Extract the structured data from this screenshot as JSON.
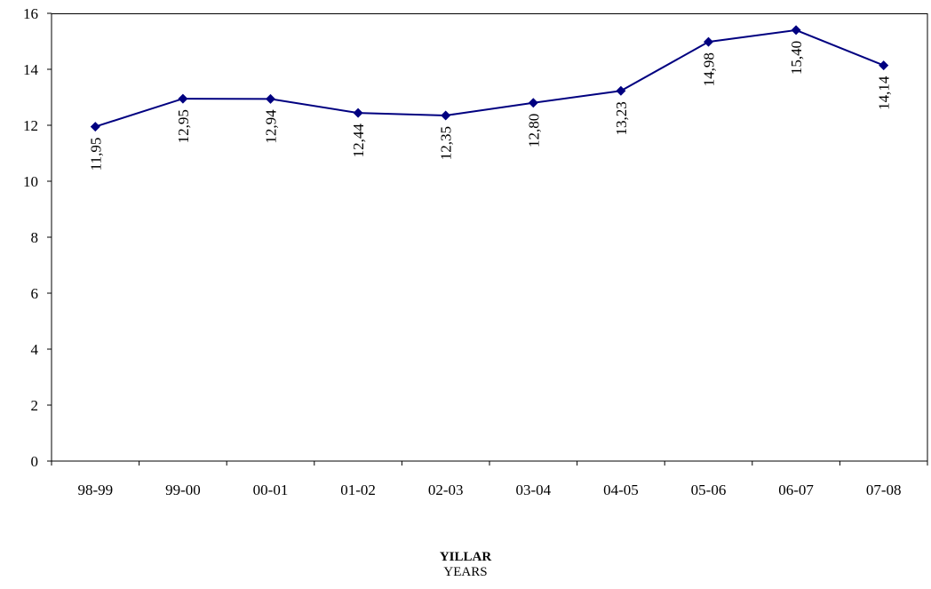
{
  "chart_data": {
    "type": "line",
    "categories": [
      "98-99",
      "99-00",
      "00-01",
      "01-02",
      "02-03",
      "03-04",
      "04-05",
      "05-06",
      "06-07",
      "07-08"
    ],
    "series": [
      {
        "values": [
          11.95,
          12.95,
          12.94,
          12.44,
          12.35,
          12.8,
          13.23,
          14.98,
          15.4,
          14.14
        ],
        "data_labels": [
          "11,95",
          "12,95",
          "12,94",
          "12,44",
          "12,35",
          "12,80",
          "13,23",
          "14,98",
          "15,40",
          "14,14"
        ],
        "color": "#000080",
        "marker": "diamond"
      }
    ],
    "ylim": [
      0,
      16
    ],
    "yticks": [
      0,
      2,
      4,
      6,
      8,
      10,
      12,
      14,
      16
    ],
    "xlabel": "YILLAR",
    "xlabel_sub": "YEARS",
    "ylabel": "",
    "title": "",
    "grid": false,
    "legend": "none"
  }
}
